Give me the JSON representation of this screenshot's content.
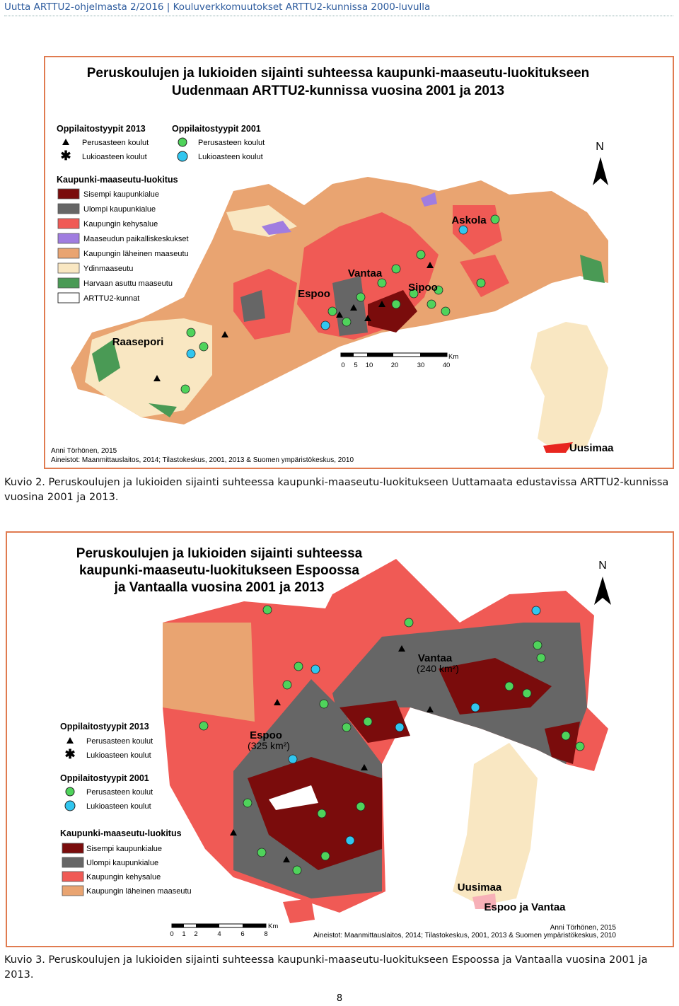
{
  "header": {
    "text": "Uutta ARTTU2-ohjelmasta 2/2016 | Kouluverkkomuutokset ARTTU2-kunnissa 2000-luvulla"
  },
  "figure_1": {
    "title_lines": [
      "Peruskoulujen ja lukioiden sijainti suhteessa kaupunki-maaseutu-luokitukseen",
      "Uudenmaan ARTTU2-kunnissa vuosina 2001 ja 2013"
    ],
    "legend": {
      "types_2013": {
        "title": "Oppilaitostyypit 2013",
        "items": [
          "Perusasteen koulut",
          "Lukioasteen koulut"
        ]
      },
      "types_2001": {
        "title": "Oppilaitostyypit 2001",
        "items": [
          "Perusasteen koulut",
          "Lukioasteen koulut"
        ]
      },
      "classification": {
        "title": "Kaupunki-maaseutu-luokitus",
        "items": [
          "Sisempi kaupunkialue",
          "Ulompi kaupunkialue",
          "Kaupungin kehysalue",
          "Maaseudun paikalliskeskukset",
          "Kaupungin läheinen maaseutu",
          "Ydinmaaseutu",
          "Harvaan asuttu maaseutu",
          "ARTTU2-kunnat"
        ]
      }
    },
    "places": [
      "Askola",
      "Vantaa",
      "Sipoo",
      "Espoo",
      "Raasepori"
    ],
    "scale": {
      "ticks": [
        0,
        5,
        10,
        20,
        30,
        40
      ],
      "unit": "Km"
    },
    "north": "N",
    "inset_label": "Uusimaa",
    "author": "Anni Törhönen, 2015",
    "sources": "Aineistot: Maanmittauslaitos, 2014; Tilastokeskus, 2001, 2013 & Suomen ympäristökeskus, 2010",
    "caption": "Kuvio 2. Peruskoulujen ja lukioiden sijainti suhteessa kaupunki-maaseutu-luokitukseen Uuttamaata edustavissa ARTTU2-kunnissa vuosina 2001 ja 2013."
  },
  "figure_2": {
    "title_lines": [
      "Peruskoulujen ja lukioiden sijainti suhteessa",
      "kaupunki-maaseutu-luokitukseen Espoossa",
      "ja Vantaalla vuosina 2001 ja 2013"
    ],
    "legend": {
      "types_2013": {
        "title": "Oppilaitostyypit 2013",
        "items": [
          "Perusasteen koulut",
          "Lukioasteen koulut"
        ]
      },
      "types_2001": {
        "title": "Oppilaitostyypit 2001",
        "items": [
          "Perusasteen koulut",
          "Lukioasteen koulut"
        ]
      },
      "classification": {
        "title": "Kaupunki-maaseutu-luokitus",
        "items": [
          "Sisempi kaupunkialue",
          "Ulompi kaupunkialue",
          "Kaupungin kehysalue",
          "Kaupungin läheinen maaseutu"
        ]
      }
    },
    "places": [
      {
        "name": "Vantaa",
        "area": "(240 km²)"
      },
      {
        "name": "Espoo",
        "area": "(325 km²)"
      }
    ],
    "scale": {
      "ticks": [
        0,
        1,
        2,
        4,
        6,
        8
      ],
      "unit": "Km"
    },
    "north": "N",
    "inset_labels": [
      "Uusimaa",
      "Espoo ja Vantaa"
    ],
    "author": "Anni Törhönen, 2015",
    "sources": "Aineistot: Maanmittauslaitos, 2014; Tilastokeskus, 2001, 2013 & Suomen ympäristökeskus, 2010",
    "caption": "Kuvio 3. Peruskoulujen ja lukioiden sijainti suhteessa kaupunki-maaseutu-luokitukseen Espoossa ja Vantaalla vuosina 2001 ja 2013."
  },
  "page_number": 8
}
